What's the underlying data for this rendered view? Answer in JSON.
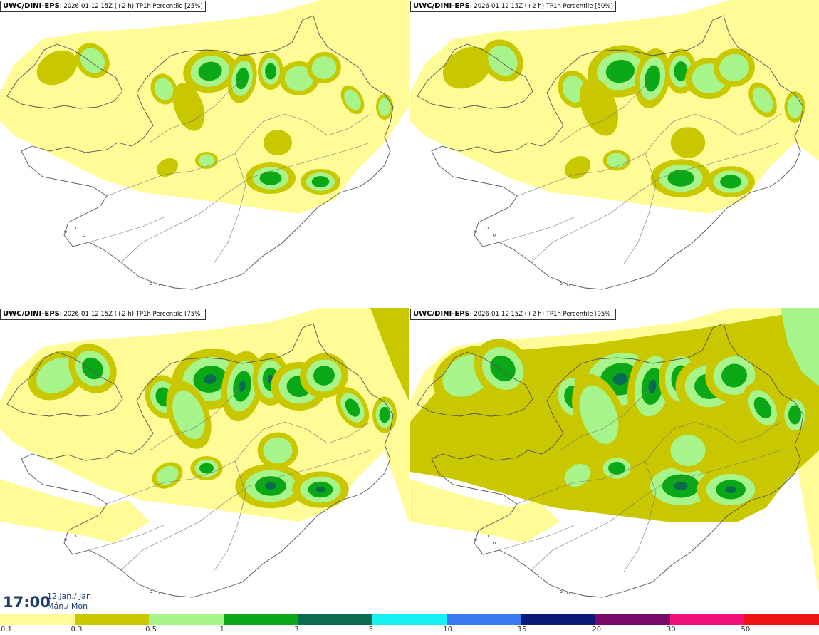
{
  "panels": [
    {
      "model": "UWC/DINI-EPS",
      "info": ": 2026-01-12 15Z (+2 h) TP1h Percentile [25%]",
      "level": 25
    },
    {
      "model": "UWC/DINI-EPS",
      "info": ": 2026-01-12 15Z (+2 h) TP1h Percentile [50%]",
      "level": 50
    },
    {
      "model": "UWC/DINI-EPS",
      "info": ": 2026-01-12 15Z (+2 h) TP1h Percentile [75%]",
      "level": 75
    },
    {
      "model": "UWC/DINI-EPS",
      "info": ": 2026-01-12 15Z (+2 h) TP1h Percentile [95%]",
      "level": 95
    }
  ],
  "time": {
    "clock": "17:00",
    "date_line1": "12.jan./ Jan",
    "date_line2": "Mán./ Mon"
  },
  "legend": {
    "colors": [
      "#fffb96",
      "#c9c800",
      "#a7f58a",
      "#0aa816",
      "#0b6b50",
      "#17f0f0",
      "#3a7af0",
      "#0a1a7a",
      "#7a0a6a",
      "#f0127a",
      "#f01414"
    ],
    "labels": [
      "0.1",
      "0.3",
      "0.5",
      "1",
      "3",
      "5",
      "10",
      "15",
      "20",
      "30",
      "50"
    ]
  }
}
